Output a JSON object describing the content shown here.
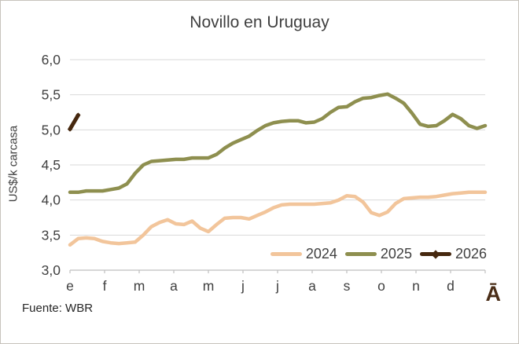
{
  "title": "Novillo en Uruguay",
  "source": "Fuente: WBR",
  "watermark": "Ā",
  "colors": {
    "text": "#404040",
    "source_text": "#262626",
    "watermark": "#4a2d17",
    "gridline": "#d9d9d9",
    "axis_line": "#bfbfbf",
    "series_2024": "#f2c59b",
    "series_2025": "#8e8f4f",
    "series_2026": "#46280f"
  },
  "chart_data": {
    "type": "line",
    "title": "Novillo en Uruguay",
    "xlabel": "",
    "ylabel": "US$/k carcasa",
    "ylim": [
      3.0,
      6.0
    ],
    "grid": "horizontal",
    "legend_position": "inside-bottom-right",
    "x_unit": "weekly points, Jan-Dec (months labeled e f m a m j j a s o n d)",
    "y_ticks": [
      {
        "value": 3.0,
        "label": "3,0"
      },
      {
        "value": 3.5,
        "label": "3,5"
      },
      {
        "value": 4.0,
        "label": "4,0"
      },
      {
        "value": 4.5,
        "label": "4,5"
      },
      {
        "value": 5.0,
        "label": "5,0"
      },
      {
        "value": 5.5,
        "label": "5,5"
      },
      {
        "value": 6.0,
        "label": "6,0"
      }
    ],
    "x_tick_labels": [
      "e",
      "f",
      "m",
      "a",
      "m",
      "j",
      "j",
      "a",
      "s",
      "o",
      "n",
      "d"
    ],
    "series": [
      {
        "name": "2024",
        "color": "#f2c59b",
        "marker": "none",
        "values": [
          3.36,
          3.45,
          3.46,
          3.45,
          3.41,
          3.39,
          3.38,
          3.39,
          3.4,
          3.5,
          3.62,
          3.68,
          3.72,
          3.66,
          3.65,
          3.7,
          3.6,
          3.55,
          3.65,
          3.74,
          3.75,
          3.75,
          3.73,
          3.78,
          3.83,
          3.89,
          3.93,
          3.94,
          3.94,
          3.94,
          3.94,
          3.95,
          3.96,
          4.0,
          4.06,
          4.05,
          3.97,
          3.82,
          3.78,
          3.83,
          3.95,
          4.02,
          4.03,
          4.04,
          4.04,
          4.05,
          4.07,
          4.09,
          4.1,
          4.11,
          4.11,
          4.11
        ]
      },
      {
        "name": "2025",
        "color": "#8e8f4f",
        "marker": "none",
        "values": [
          4.11,
          4.11,
          4.13,
          4.13,
          4.13,
          4.15,
          4.17,
          4.23,
          4.38,
          4.5,
          4.55,
          4.56,
          4.57,
          4.58,
          4.58,
          4.6,
          4.6,
          4.6,
          4.65,
          4.74,
          4.81,
          4.86,
          4.91,
          4.99,
          5.06,
          5.1,
          5.12,
          5.13,
          5.13,
          5.1,
          5.11,
          5.16,
          5.25,
          5.32,
          5.33,
          5.4,
          5.45,
          5.46,
          5.49,
          5.51,
          5.45,
          5.38,
          5.24,
          5.08,
          5.05,
          5.06,
          5.13,
          5.22,
          5.16,
          5.06,
          5.02,
          5.06
        ]
      },
      {
        "name": "2026",
        "color": "#46280f",
        "marker": "diamond",
        "values": [
          5.01,
          5.21
        ]
      }
    ]
  }
}
